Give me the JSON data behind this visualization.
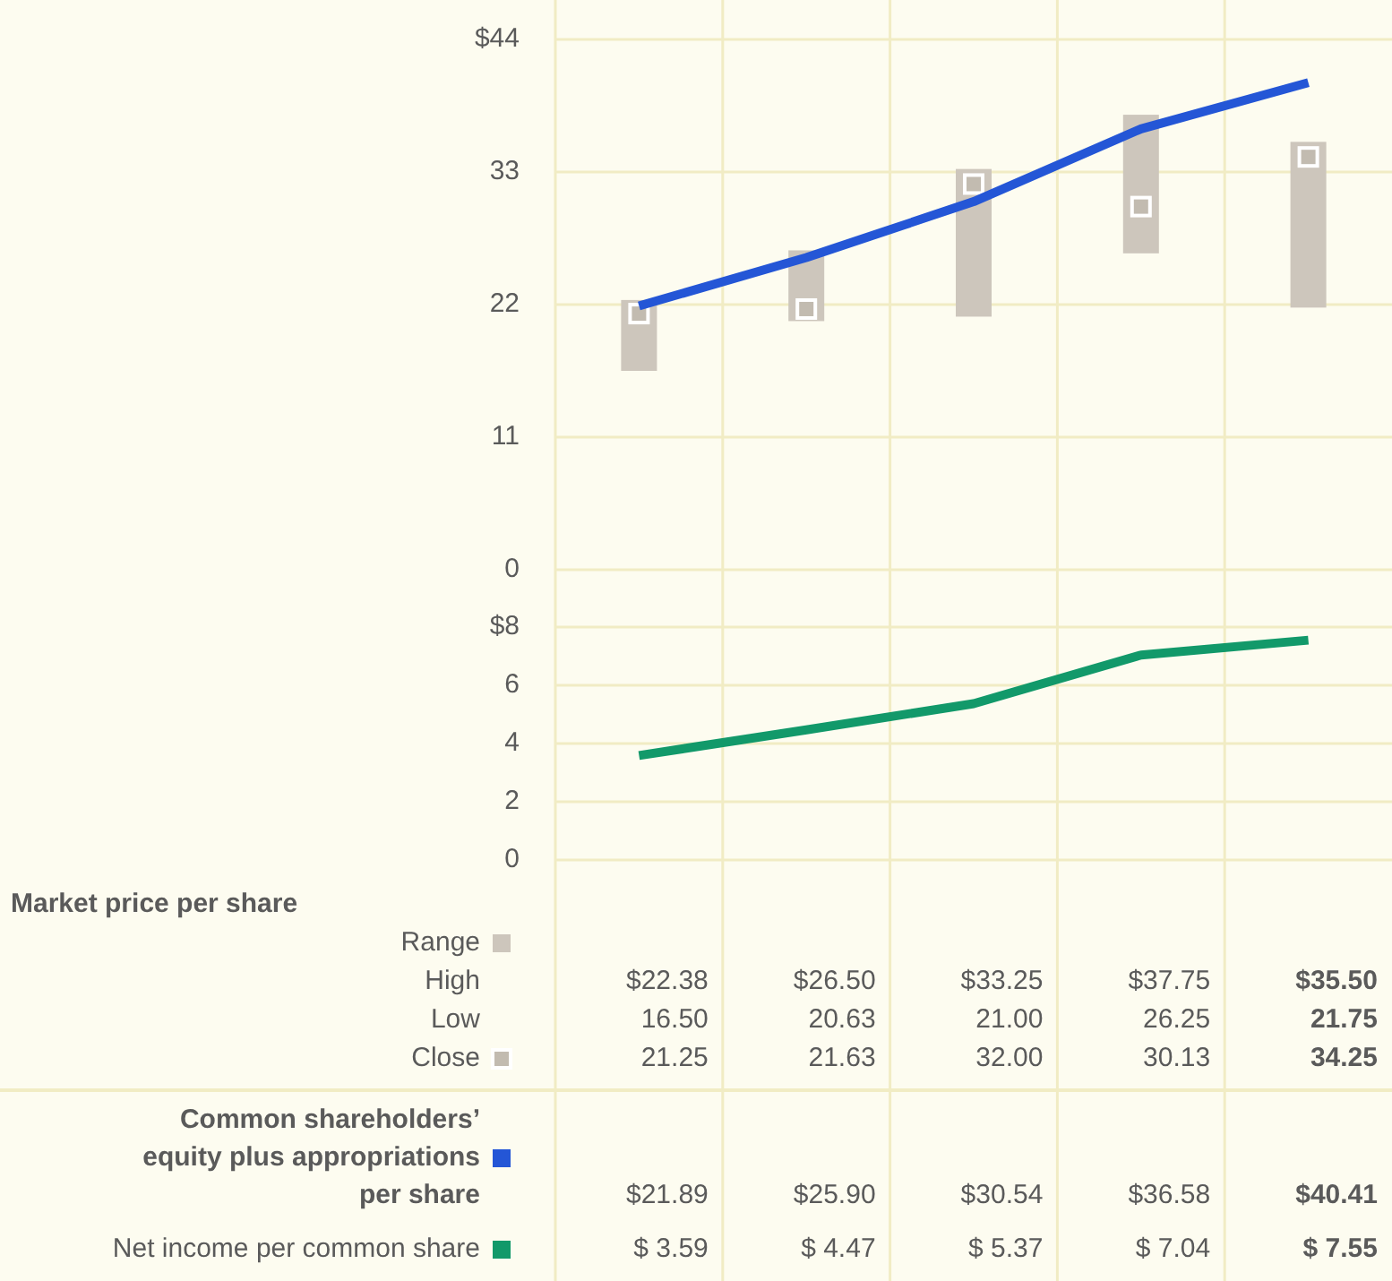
{
  "chart_data": [
    {
      "type": "bar",
      "categories": [
        null,
        null,
        null,
        null,
        null
      ],
      "ylim": [
        0,
        44
      ],
      "yticks": [
        0,
        11,
        22,
        33,
        {
          "value": 44,
          "label": "$44"
        }
      ],
      "grid": true,
      "legend": "bottom",
      "legend_title": "Market price per share",
      "annotations": [
        "High",
        "$22.38",
        "$26.50",
        "$33.25",
        "$37.75",
        "$35.50",
        "Low",
        "16.50",
        "20.63",
        "21.00",
        "26.25",
        "21.75"
      ],
      "series": [
        {
          "name": "Range",
          "color": "#cdc6bc",
          "base": [
            16.5,
            20.63,
            21.0,
            26.25,
            21.75
          ],
          "values": [
            5.88,
            5.87,
            12.25,
            11.5,
            13.75
          ]
        },
        {
          "name": "Close",
          "type": "scatter",
          "marker": "square",
          "color": "#c2bbb0",
          "values": [
            21.25,
            21.63,
            32.0,
            30.13,
            34.25
          ],
          "value_labels": [
            "21.25",
            "21.63",
            "32.00",
            "30.13",
            "34.25"
          ]
        },
        {
          "name": "Common shareholders’ equity plus appropriations per share",
          "type": "line",
          "color": "#2456d6",
          "values": [
            21.89,
            25.9,
            30.54,
            36.58,
            40.41
          ],
          "value_labels": [
            "$21.89",
            "$25.90",
            "$30.54",
            "$36.58",
            "$40.41"
          ]
        }
      ]
    },
    {
      "type": "line",
      "categories": [
        null,
        null,
        null,
        null,
        null
      ],
      "ylim": [
        0,
        8
      ],
      "yticks": [
        0,
        2,
        4,
        6,
        {
          "value": 8,
          "label": "$8"
        }
      ],
      "grid": true,
      "legend": "bottom",
      "series": [
        {
          "name": "Net income per common share",
          "color": "#12996a",
          "values": [
            3.59,
            4.47,
            5.37,
            7.04,
            7.55
          ],
          "value_labels": [
            "$ 3.59",
            "$ 4.47",
            "$ 5.37",
            "$ 7.04",
            "$ 7.55"
          ]
        }
      ]
    }
  ]
}
